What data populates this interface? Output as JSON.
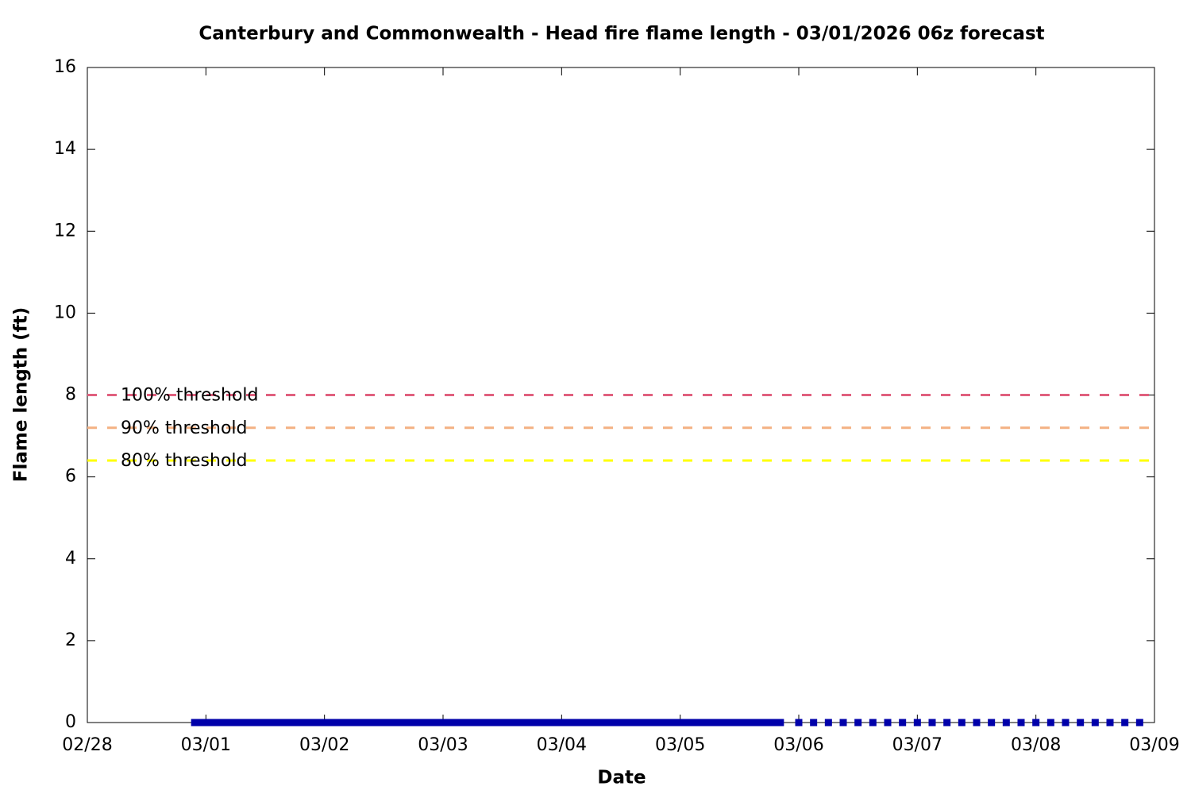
{
  "chart_data": {
    "type": "line",
    "title": "Canterbury and Commonwealth - Head fire flame length - 03/01/2026 06z forecast",
    "x_label": "Date",
    "y_label": "Flame length (ft)",
    "xlim": [
      0,
      9
    ],
    "xticks": [
      {
        "value": 0,
        "label": "02/28"
      },
      {
        "value": 1,
        "label": "03/01"
      },
      {
        "value": 2,
        "label": "03/02"
      },
      {
        "value": 3,
        "label": "03/03"
      },
      {
        "value": 4,
        "label": "03/04"
      },
      {
        "value": 5,
        "label": "03/05"
      },
      {
        "value": 6,
        "label": "03/06"
      },
      {
        "value": 7,
        "label": "03/07"
      },
      {
        "value": 8,
        "label": "03/08"
      },
      {
        "value": 9,
        "label": "03/09"
      }
    ],
    "ylim": [
      0,
      16
    ],
    "yticks": [
      0,
      2,
      4,
      6,
      8,
      10,
      12,
      14,
      16
    ],
    "thresholds": [
      {
        "label": "100% threshold",
        "value": 8,
        "color": "#e0607e"
      },
      {
        "label": "90% threshold",
        "value": 7.2,
        "color": "#f4b183"
      },
      {
        "label": "80% threshold",
        "value": 6.4,
        "color": "#ffff00"
      }
    ],
    "series": [
      {
        "color": "#0000aa",
        "style": "solid",
        "x": [
          0.875,
          1,
          1.125,
          1.25,
          1.375,
          1.5,
          1.625,
          1.75,
          1.875,
          2,
          2.125,
          2.25,
          2.375,
          2.5,
          2.625,
          2.75,
          2.875,
          3,
          3.125,
          3.25,
          3.375,
          3.5,
          3.625,
          3.75,
          3.875,
          4,
          4.125,
          4.25,
          4.375,
          4.5,
          4.625,
          4.75,
          4.875,
          5,
          5.125,
          5.25,
          5.375,
          5.5,
          5.625,
          5.75,
          5.875
        ],
        "values": [
          0,
          0,
          0,
          0,
          0,
          0,
          0,
          0,
          0,
          0,
          0,
          0,
          0,
          0,
          0,
          0,
          0,
          0,
          0,
          0,
          0,
          0,
          0,
          0,
          0,
          0,
          0,
          0,
          0,
          0,
          0,
          0,
          0,
          0,
          0,
          0,
          0,
          0,
          0,
          0,
          0
        ]
      },
      {
        "color": "#0000aa",
        "style": "points",
        "x": [
          6,
          6.125,
          6.25,
          6.375,
          6.5,
          6.625,
          6.75,
          6.875,
          7,
          7.125,
          7.25,
          7.375,
          7.5,
          7.625,
          7.75,
          7.875,
          8,
          8.125,
          8.25,
          8.375,
          8.5,
          8.625,
          8.75,
          8.875
        ],
        "values": [
          0,
          0,
          0,
          0,
          0,
          0,
          0,
          0,
          0,
          0,
          0,
          0,
          0,
          0,
          0,
          0,
          0,
          0,
          0,
          0,
          0,
          0,
          0,
          0
        ]
      }
    ]
  }
}
